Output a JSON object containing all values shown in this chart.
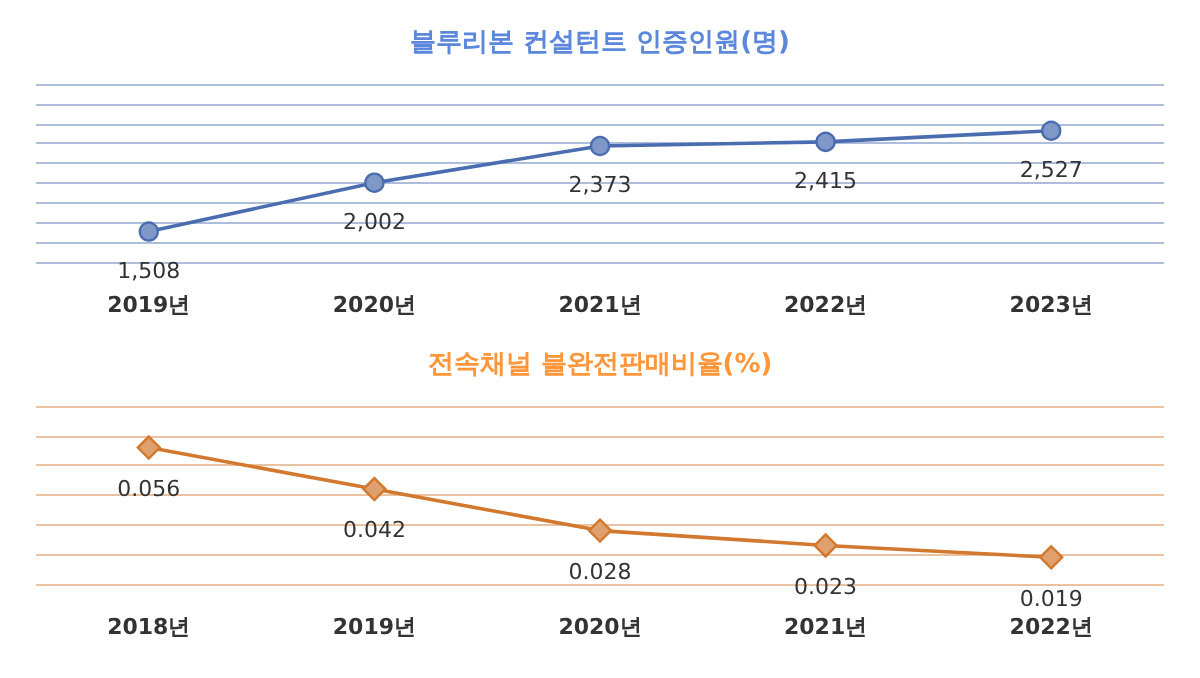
{
  "chart_data": [
    {
      "type": "line",
      "title": "블루리본 컨설턴트 인증인원(명)",
      "categories": [
        "2019년",
        "2020년",
        "2021년",
        "2022년",
        "2023년"
      ],
      "series": [
        {
          "color": "#4a6db0",
          "values": [
            1508,
            2002,
            2373,
            2415,
            2527
          ],
          "value_labels": [
            "1,508",
            "2,002",
            "2,373",
            "2,415",
            "2,527"
          ]
        }
      ],
      "marker": "circle",
      "grid": "y",
      "tick_labels": "x",
      "ylim": [
        1200,
        3000
      ],
      "yticks": [
        {
          "value": 1200,
          "label": null
        },
        {
          "value": 1400,
          "label": null
        },
        {
          "value": 1600,
          "label": null
        },
        {
          "value": 1800,
          "label": null
        },
        {
          "value": 2000,
          "label": null
        },
        {
          "value": 2200,
          "label": null
        },
        {
          "value": 2400,
          "label": null
        },
        {
          "value": 2600,
          "label": null
        },
        {
          "value": 2800,
          "label": null
        },
        {
          "value": 3000,
          "label": null
        }
      ]
    },
    {
      "type": "line",
      "title": "전속채널 불완전판매비율(%)",
      "categories": [
        "2018년",
        "2019년",
        "2020년",
        "2021년",
        "2022년"
      ],
      "series": [
        {
          "color": "#d2782f",
          "values": [
            0.056,
            0.042,
            0.028,
            0.023,
            0.019
          ]
        }
      ],
      "marker": "diamond",
      "data_labels": true,
      "grid": "y",
      "tick_labels": "x",
      "ylim": [
        0.01,
        0.07
      ],
      "yticks": [
        {
          "value": 0.01,
          "label": null
        },
        {
          "value": 0.02,
          "label": null
        },
        {
          "value": 0.03,
          "label": null
        },
        {
          "value": 0.04,
          "label": null
        },
        {
          "value": 0.05,
          "label": null
        },
        {
          "value": 0.06,
          "label": null
        },
        {
          "value": 0.07,
          "label": null
        }
      ]
    }
  ]
}
